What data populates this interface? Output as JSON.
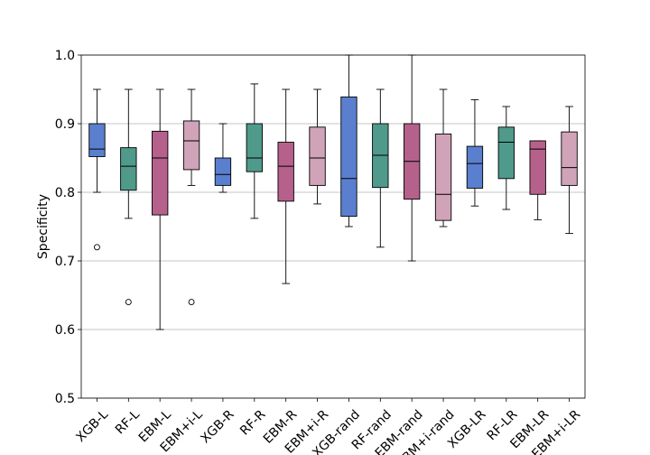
{
  "chart_data": {
    "type": "boxplot",
    "ylabel": "Specificity",
    "xlabel": "",
    "ylim": [
      0.5,
      1.0
    ],
    "yticks": [
      0.5,
      0.6,
      0.7,
      0.8,
      0.9,
      1.0
    ],
    "ytick_labels": [
      "0.5",
      "0.6",
      "0.7",
      "0.8",
      "0.9",
      "1.0"
    ],
    "grid": "horizontal",
    "colors": {
      "blue": "#5b7fcf",
      "green": "#4f9a8a",
      "magenta": "#b5618b",
      "pink": "#d1a3b8",
      "grid": "#b0b0b0"
    },
    "categories": [
      "XGB-L",
      "RF-L",
      "EBM-L",
      "EBM+i-L",
      "XGB-R",
      "RF-R",
      "EBM-R",
      "EBM+i-R",
      "XGB-rand",
      "RF-rand",
      "EBM-rand",
      "EBM+i-rand",
      "XGB-LR",
      "RF-LR",
      "EBM-LR",
      "EBM+i-LR"
    ],
    "boxes": [
      {
        "label": "XGB-L",
        "whislo": 0.8,
        "q1": 0.852,
        "med": 0.863,
        "q3": 0.9,
        "whishi": 0.95,
        "fliers": [
          0.72
        ],
        "color": "blue"
      },
      {
        "label": "RF-L",
        "whislo": 0.762,
        "q1": 0.803,
        "med": 0.838,
        "q3": 0.865,
        "whishi": 0.95,
        "fliers": [
          0.64
        ],
        "color": "green"
      },
      {
        "label": "EBM-L",
        "whislo": 0.6,
        "q1": 0.767,
        "med": 0.85,
        "q3": 0.889,
        "whishi": 0.95,
        "fliers": [],
        "color": "magenta"
      },
      {
        "label": "EBM+i-L",
        "whislo": 0.81,
        "q1": 0.833,
        "med": 0.875,
        "q3": 0.904,
        "whishi": 0.95,
        "fliers": [
          0.64
        ],
        "color": "pink"
      },
      {
        "label": "XGB-R",
        "whislo": 0.8,
        "q1": 0.81,
        "med": 0.826,
        "q3": 0.85,
        "whishi": 0.9,
        "fliers": [],
        "color": "blue"
      },
      {
        "label": "RF-R",
        "whislo": 0.762,
        "q1": 0.83,
        "med": 0.85,
        "q3": 0.9,
        "whishi": 0.958,
        "fliers": [],
        "color": "green"
      },
      {
        "label": "EBM-R",
        "whislo": 0.667,
        "q1": 0.787,
        "med": 0.838,
        "q3": 0.873,
        "whishi": 0.95,
        "fliers": [],
        "color": "magenta"
      },
      {
        "label": "EBM+i-R",
        "whislo": 0.783,
        "q1": 0.81,
        "med": 0.85,
        "q3": 0.895,
        "whishi": 0.95,
        "fliers": [],
        "color": "pink"
      },
      {
        "label": "XGB-rand",
        "whislo": 0.75,
        "q1": 0.765,
        "med": 0.82,
        "q3": 0.939,
        "whishi": 1.0,
        "fliers": [],
        "color": "blue"
      },
      {
        "label": "RF-rand",
        "whislo": 0.72,
        "q1": 0.807,
        "med": 0.854,
        "q3": 0.9,
        "whishi": 0.95,
        "fliers": [],
        "color": "green"
      },
      {
        "label": "EBM-rand",
        "whislo": 0.7,
        "q1": 0.79,
        "med": 0.845,
        "q3": 0.9,
        "whishi": 1.0,
        "fliers": [],
        "color": "magenta"
      },
      {
        "label": "EBM+i-rand",
        "whislo": 0.75,
        "q1": 0.759,
        "med": 0.797,
        "q3": 0.885,
        "whishi": 0.95,
        "fliers": [],
        "color": "pink"
      },
      {
        "label": "XGB-LR",
        "whislo": 0.78,
        "q1": 0.806,
        "med": 0.842,
        "q3": 0.867,
        "whishi": 0.935,
        "fliers": [],
        "color": "blue"
      },
      {
        "label": "RF-LR",
        "whislo": 0.775,
        "q1": 0.82,
        "med": 0.873,
        "q3": 0.895,
        "whishi": 0.925,
        "fliers": [],
        "color": "green"
      },
      {
        "label": "EBM-LR",
        "whislo": 0.76,
        "q1": 0.797,
        "med": 0.863,
        "q3": 0.875,
        "whishi": 0.875,
        "fliers": [],
        "color": "magenta"
      },
      {
        "label": "EBM+i-LR",
        "whislo": 0.74,
        "q1": 0.81,
        "med": 0.836,
        "q3": 0.888,
        "whishi": 0.925,
        "fliers": [],
        "color": "pink"
      }
    ]
  }
}
